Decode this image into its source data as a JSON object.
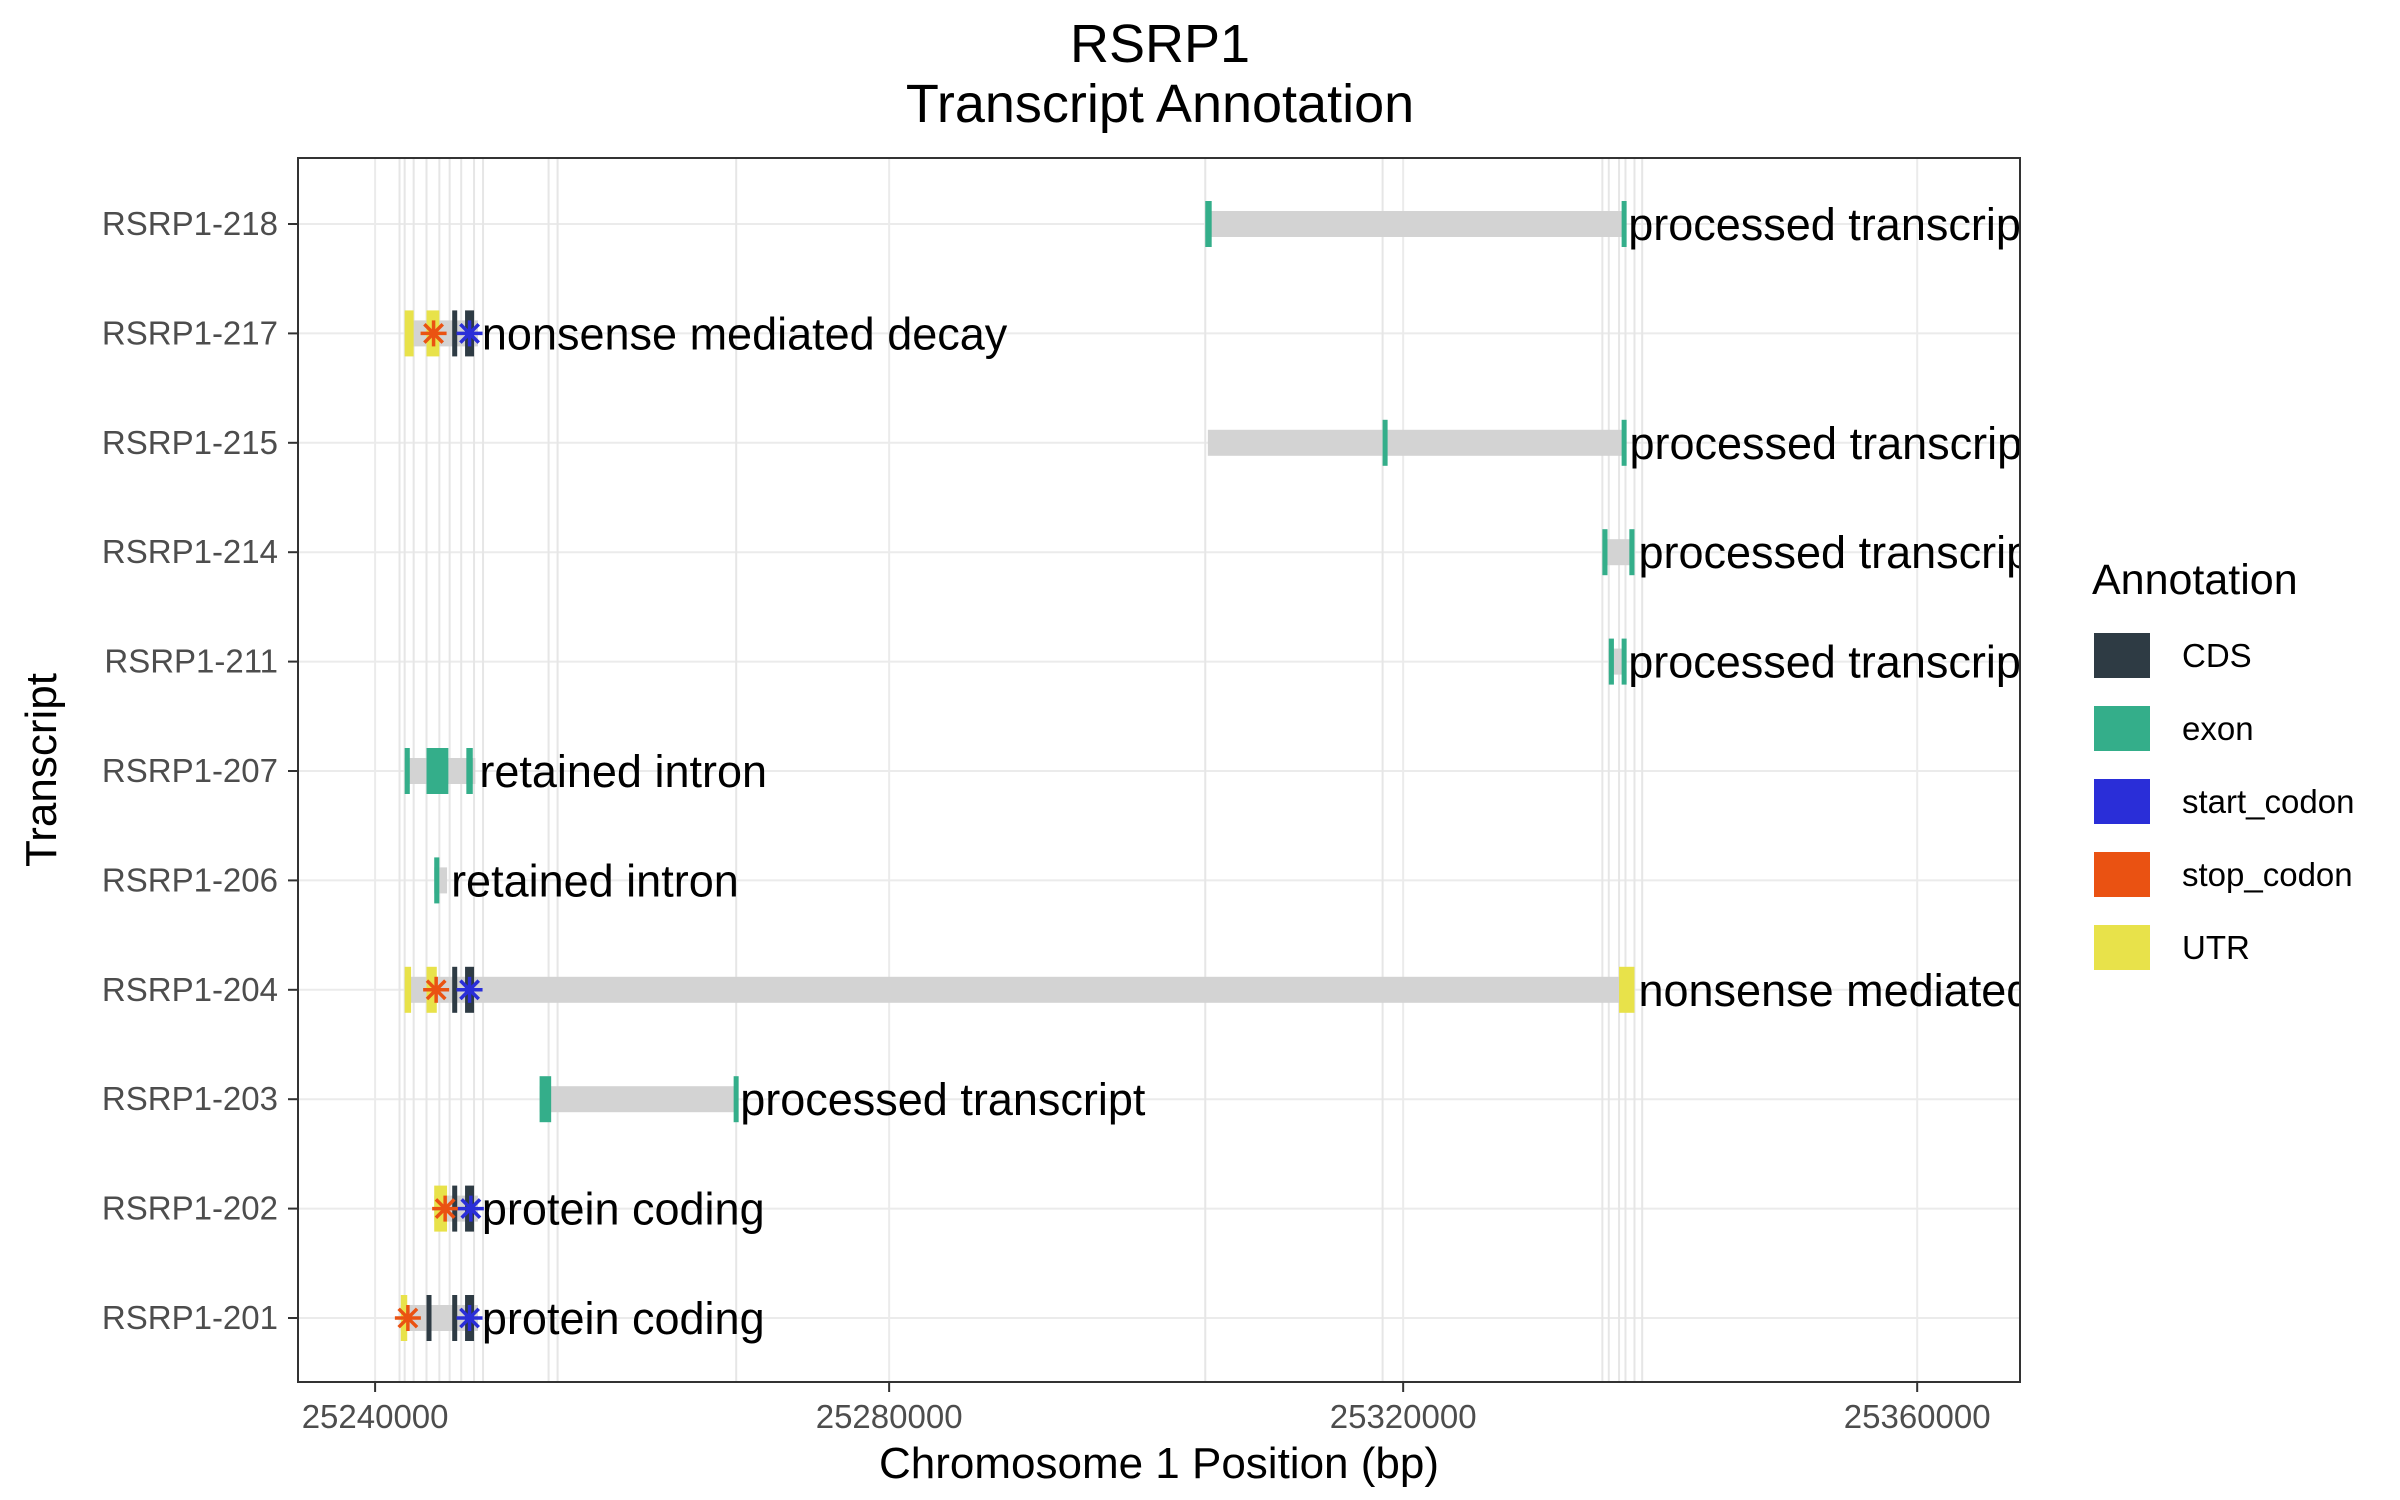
{
  "chart_data": {
    "type": "gantt",
    "title": "RSRP1",
    "subtitle": "Transcript Annotation",
    "xlabel": "Chromosome 1 Position (bp)",
    "ylabel": "Transcript",
    "xlim": [
      25234000,
      25368000
    ],
    "x_ticks": [
      25240000,
      25280000,
      25320000,
      25360000
    ],
    "x_tick_labels": [
      "25240000",
      "25280000",
      "25320000",
      "25360000"
    ],
    "grid": true,
    "legend_position": "right",
    "legend": {
      "title": "Annotation",
      "entries": [
        {
          "label": "CDS",
          "color": "#2e3b44"
        },
        {
          "label": "exon",
          "color": "#34ae8a"
        },
        {
          "label": "start_codon",
          "color": "#2a2ed8"
        },
        {
          "label": "stop_codon",
          "color": "#ea5212"
        },
        {
          "label": "UTR",
          "color": "#e8e24a"
        }
      ]
    },
    "transcripts": [
      {
        "name": "RSRP1-218",
        "biotype": "processed transcript",
        "span": [
          25304600,
          25337200
        ],
        "features": [
          {
            "type": "exon",
            "start": 25304600,
            "end": 25305100
          },
          {
            "type": "exon",
            "start": 25337000,
            "end": 25337200
          }
        ]
      },
      {
        "name": "RSRP1-217",
        "biotype": "nonsense mediated decay",
        "span": [
          25242300,
          25248000
        ],
        "features": [
          {
            "type": "UTR",
            "start": 25242300,
            "end": 25243000
          },
          {
            "type": "UTR",
            "start": 25244000,
            "end": 25245000
          },
          {
            "type": "CDS",
            "start": 25246000,
            "end": 25246200
          },
          {
            "type": "CDS",
            "start": 25247000,
            "end": 25247700
          },
          {
            "type": "stop_codon",
            "start": 25244500,
            "end": 25244600
          },
          {
            "type": "start_codon",
            "start": 25247300,
            "end": 25247400
          }
        ]
      },
      {
        "name": "RSRP1-215",
        "biotype": "processed transcript",
        "span": [
          25304800,
          25337300
        ],
        "features": [
          {
            "type": "exon",
            "start": 25318400,
            "end": 25318600
          },
          {
            "type": "exon",
            "start": 25337000,
            "end": 25337300
          }
        ]
      },
      {
        "name": "RSRP1-214",
        "biotype": "processed transcript",
        "span": [
          25335500,
          25338000
        ],
        "features": [
          {
            "type": "exon",
            "start": 25335500,
            "end": 25335900
          },
          {
            "type": "exon",
            "start": 25337600,
            "end": 25338000
          }
        ]
      },
      {
        "name": "RSRP1-211",
        "biotype": "processed transcript",
        "span": [
          25336000,
          25337200
        ],
        "features": [
          {
            "type": "exon",
            "start": 25336000,
            "end": 25336400
          },
          {
            "type": "exon",
            "start": 25337000,
            "end": 25337200
          }
        ]
      },
      {
        "name": "RSRP1-207",
        "biotype": "retained intron",
        "span": [
          25242300,
          25247800
        ],
        "features": [
          {
            "type": "exon",
            "start": 25242300,
            "end": 25242700
          },
          {
            "type": "exon",
            "start": 25244000,
            "end": 25245700
          },
          {
            "type": "exon",
            "start": 25247100,
            "end": 25247600
          }
        ]
      },
      {
        "name": "RSRP1-206",
        "biotype": "retained intron",
        "span": [
          25244600,
          25245600
        ],
        "features": [
          {
            "type": "exon",
            "start": 25244600,
            "end": 25245000
          }
        ]
      },
      {
        "name": "RSRP1-204",
        "biotype": "nonsense mediated decay",
        "span": [
          25242300,
          25338000
        ],
        "features": [
          {
            "type": "UTR",
            "start": 25242300,
            "end": 25242800
          },
          {
            "type": "UTR",
            "start": 25244000,
            "end": 25244800
          },
          {
            "type": "CDS",
            "start": 25246000,
            "end": 25246200
          },
          {
            "type": "CDS",
            "start": 25247000,
            "end": 25247700
          },
          {
            "type": "UTR",
            "start": 25336800,
            "end": 25338000
          },
          {
            "type": "stop_codon",
            "start": 25244700,
            "end": 25244800
          },
          {
            "type": "start_codon",
            "start": 25247300,
            "end": 25247400
          }
        ]
      },
      {
        "name": "RSRP1-203",
        "biotype": "processed transcript",
        "span": [
          25252800,
          25268100
        ],
        "features": [
          {
            "type": "exon",
            "start": 25252800,
            "end": 25253700
          },
          {
            "type": "exon",
            "start": 25267900,
            "end": 25268100
          }
        ]
      },
      {
        "name": "RSRP1-202",
        "biotype": "protein coding",
        "span": [
          25244600,
          25248000
        ],
        "features": [
          {
            "type": "UTR",
            "start": 25244600,
            "end": 25245600
          },
          {
            "type": "CDS",
            "start": 25246000,
            "end": 25246200
          },
          {
            "type": "CDS",
            "start": 25247000,
            "end": 25247700
          },
          {
            "type": "stop_codon",
            "start": 25245400,
            "end": 25245500
          },
          {
            "type": "start_codon",
            "start": 25247400,
            "end": 25247500
          }
        ]
      },
      {
        "name": "RSRP1-201",
        "biotype": "protein coding",
        "span": [
          25242000,
          25248000
        ],
        "features": [
          {
            "type": "UTR",
            "start": 25242000,
            "end": 25242500
          },
          {
            "type": "CDS",
            "start": 25244000,
            "end": 25244200
          },
          {
            "type": "CDS",
            "start": 25246000,
            "end": 25246200
          },
          {
            "type": "CDS",
            "start": 25247000,
            "end": 25247700
          },
          {
            "type": "stop_codon",
            "start": 25242500,
            "end": 25242600
          },
          {
            "type": "start_codon",
            "start": 25247300,
            "end": 25247400
          }
        ]
      }
    ],
    "vertical_guides": [
      25241900,
      25242300,
      25243000,
      25244000,
      25245000,
      25245800,
      25246700,
      25247700,
      25248400,
      25253500,
      25254200,
      25268100,
      25304600,
      25318400,
      25335500,
      25336000,
      25336800,
      25337300,
      25338000,
      25338600
    ]
  }
}
